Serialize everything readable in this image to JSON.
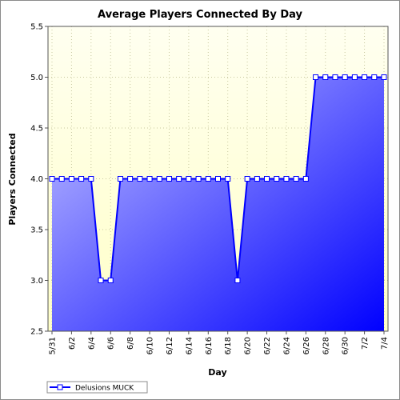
{
  "chart_data": {
    "type": "area",
    "title": "Average Players Connected By Day",
    "xlabel": "Day",
    "ylabel": "Players Connected",
    "ylim": [
      2.5,
      5.5
    ],
    "yticks": [
      "2.5",
      "3.0",
      "3.5",
      "4.0",
      "4.5",
      "5.0",
      "5.5"
    ],
    "x_tick_labels": [
      "5/31",
      "6/2",
      "6/4",
      "6/6",
      "6/8",
      "6/10",
      "6/12",
      "6/14",
      "6/16",
      "6/18",
      "6/20",
      "6/22",
      "6/24",
      "6/26",
      "6/28",
      "6/30",
      "7/2",
      "7/4"
    ],
    "x": [
      "5/31",
      "6/1",
      "6/2",
      "6/3",
      "6/4",
      "6/5",
      "6/6",
      "6/7",
      "6/8",
      "6/9",
      "6/10",
      "6/11",
      "6/12",
      "6/13",
      "6/14",
      "6/15",
      "6/16",
      "6/17",
      "6/18",
      "6/19",
      "6/20",
      "6/21",
      "6/22",
      "6/23",
      "6/24",
      "6/25",
      "6/26",
      "6/27",
      "6/28",
      "6/29",
      "6/30",
      "7/1",
      "7/2",
      "7/3",
      "7/4"
    ],
    "series": [
      {
        "name": "Delusions MUCK",
        "values": [
          4,
          4,
          4,
          4,
          4,
          3,
          3,
          4,
          4,
          4,
          4,
          4,
          4,
          4,
          4,
          4,
          4,
          4,
          4,
          3,
          4,
          4,
          4,
          4,
          4,
          4,
          4,
          5,
          5,
          5,
          5,
          5,
          5,
          5,
          5
        ]
      }
    ],
    "grid": true,
    "legend_position": "bottom-left",
    "colors": {
      "plot_background_top": "#fffff0",
      "plot_background_bottom": "#ffffc8",
      "area_light": "#c4c4ff",
      "area_dark": "#0000ff",
      "line": "#0000ff",
      "marker_fill": "#ffffff",
      "marker_stroke": "#0000ff",
      "grid": "#c8c8a0"
    }
  }
}
